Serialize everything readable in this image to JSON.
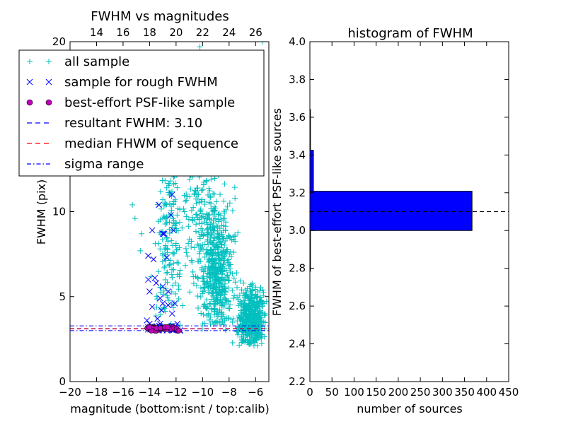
{
  "chart_data": [
    {
      "type": "scatter",
      "title": "FWHM vs magnitudes",
      "xlabel": "magnitude (bottom:isnt / top:calib)",
      "ylabel": "FWHM (pix)",
      "xlim": [
        -20,
        -5
      ],
      "ylim": [
        0,
        20
      ],
      "x_ticks": [
        -20,
        -18,
        -16,
        -14,
        -12,
        -10,
        -8,
        -6
      ],
      "x_tick_labels": [
        "−20",
        "−18",
        "−16",
        "−14",
        "−12",
        "−10",
        "−8",
        "−6"
      ],
      "y_ticks": [
        0,
        5,
        10,
        20
      ],
      "y_tick_labels": [
        "0",
        "5",
        "10",
        "20"
      ],
      "top_axis": {
        "label": "calib",
        "offset": 32,
        "ticks": [
          14,
          16,
          18,
          20,
          22,
          24,
          26
        ],
        "tick_labels": [
          "14",
          "16",
          "18",
          "20",
          "22",
          "24",
          "26"
        ]
      },
      "grid": false,
      "legend_position": "top-left",
      "legend": [
        {
          "label": "all sample",
          "marker": "plus",
          "color": "#00bfbf"
        },
        {
          "label": "sample for rough FWHM",
          "marker": "x",
          "color": "#0000ff"
        },
        {
          "label": "best-effort PSF-like sample",
          "marker": "circle",
          "color": "#bf00bf"
        },
        {
          "label": "resultant FWHM: 3.10",
          "line": "dashed",
          "color": "#0000ff"
        },
        {
          "label": "median FHWM of sequence",
          "line": "dashed",
          "color": "#ff0000"
        },
        {
          "label": "sigma range",
          "line": "dashdot",
          "color": "#0000ff"
        }
      ],
      "series": [
        {
          "name": "all sample",
          "marker": "plus",
          "color": "#00bfbf",
          "clusters": [
            {
              "x_range": [
                -10.8,
                -7.0
              ],
              "y_range": [
                3.0,
                12.0
              ],
              "count": 520
            },
            {
              "x_range": [
                -8.0,
                -5.0
              ],
              "y_range": [
                2.0,
                6.0
              ],
              "count": 420
            },
            {
              "x_range": [
                -14.0,
                -11.0
              ],
              "y_range": [
                3.2,
                17.0
              ],
              "count": 200
            },
            {
              "x_range": [
                -12.0,
                -8.5
              ],
              "y_range": [
                5.0,
                20.0
              ],
              "count": 180
            },
            {
              "x_range": [
                -6.5,
                -5.0
              ],
              "y_range": [
                2.5,
                5.5
              ],
              "count": 60
            }
          ],
          "points": [
            {
              "x": -15.3,
              "y": 10.4
            },
            {
              "x": -15.1,
              "y": 9.6
            },
            {
              "x": -14.6,
              "y": 8.7
            },
            {
              "x": -14.7,
              "y": 7.7
            },
            {
              "x": -10.2,
              "y": 19.7
            },
            {
              "x": -9.4,
              "y": 18.9
            },
            {
              "x": -5.5,
              "y": 20.0
            },
            {
              "x": -5.8,
              "y": 13.3
            }
          ]
        },
        {
          "name": "sample for rough FWHM",
          "marker": "x",
          "color": "#0000ff",
          "points": [
            {
              "x": -13.8,
              "y": 8.9
            },
            {
              "x": -13.3,
              "y": 10.4
            },
            {
              "x": -12.4,
              "y": 9.8
            },
            {
              "x": -12.3,
              "y": 11.0
            },
            {
              "x": -13.0,
              "y": 8.7
            },
            {
              "x": -12.9,
              "y": 8.7
            },
            {
              "x": -12.2,
              "y": 8.9
            },
            {
              "x": -14.1,
              "y": 6.0
            },
            {
              "x": -13.6,
              "y": 6.1
            },
            {
              "x": -13.5,
              "y": 5.8
            },
            {
              "x": -13.0,
              "y": 5.6
            },
            {
              "x": -12.6,
              "y": 5.3
            },
            {
              "x": -14.0,
              "y": 5.3
            },
            {
              "x": -13.2,
              "y": 4.9
            },
            {
              "x": -13.8,
              "y": 4.4
            },
            {
              "x": -13.0,
              "y": 4.6
            },
            {
              "x": -12.6,
              "y": 4.5
            },
            {
              "x": -12.1,
              "y": 4.6
            },
            {
              "x": -13.1,
              "y": 4.2
            },
            {
              "x": -12.3,
              "y": 4.0
            },
            {
              "x": -14.2,
              "y": 3.6
            },
            {
              "x": -13.4,
              "y": 3.7
            },
            {
              "x": -11.9,
              "y": 3.4
            },
            {
              "x": -14.0,
              "y": 3.4
            },
            {
              "x": -13.2,
              "y": 3.4
            },
            {
              "x": -12.1,
              "y": 3.1
            },
            {
              "x": -11.7,
              "y": 3.0
            },
            {
              "x": -14.1,
              "y": 7.4
            },
            {
              "x": -12.7,
              "y": 7.3
            },
            {
              "x": -13.7,
              "y": 7.2
            }
          ]
        },
        {
          "name": "best-effort PSF-like sample",
          "marker": "circle",
          "color": "#bf00bf",
          "x_range": [
            -14.2,
            -11.8
          ],
          "y_values": [
            3.0,
            3.1,
            3.15,
            3.2
          ],
          "count": 40
        }
      ],
      "hlines": [
        {
          "name": "resultant FWHM",
          "y": 3.1,
          "style": "dashed",
          "color": "#0000ff"
        },
        {
          "name": "median FHWM of sequence",
          "y": 3.12,
          "style": "dashed",
          "color": "#ff0000"
        },
        {
          "name": "sigma range upper",
          "y": 3.28,
          "style": "dashdot",
          "color": "#0000ff"
        },
        {
          "name": "sigma range lower",
          "y": 3.0,
          "style": "dashdot",
          "color": "#0000ff"
        }
      ]
    },
    {
      "type": "bar",
      "orientation": "horizontal",
      "title": "histogram of FWHM",
      "xlabel": "number of sources",
      "ylabel": "FWHM of best-effort PSF-like sources",
      "xlim": [
        0,
        450
      ],
      "ylim": [
        2.2,
        4.0
      ],
      "x_ticks": [
        0,
        50,
        100,
        150,
        200,
        250,
        300,
        350,
        400,
        450
      ],
      "x_tick_labels": [
        "0",
        "50",
        "100",
        "150",
        "200",
        "250",
        "300",
        "350",
        "400",
        "450"
      ],
      "y_ticks": [
        2.2,
        2.4,
        2.6,
        2.8,
        3.0,
        3.2,
        3.4,
        3.6,
        3.8,
        4.0
      ],
      "y_tick_labels": [
        "2.2",
        "2.4",
        "2.6",
        "2.8",
        "3.0",
        "3.2",
        "3.4",
        "3.6",
        "3.8",
        "4.0"
      ],
      "grid": false,
      "bins": [
        {
          "y_from": 2.784,
          "y_to": 3.0,
          "count": 1
        },
        {
          "y_from": 3.0,
          "y_to": 3.208,
          "count": 367
        },
        {
          "y_from": 3.208,
          "y_to": 3.425,
          "count": 8
        },
        {
          "y_from": 3.425,
          "y_to": 3.641,
          "count": 1
        }
      ],
      "bar_color": "#0000ff",
      "hline": {
        "y": 3.1,
        "style": "dashed",
        "color": "#000000"
      }
    }
  ]
}
